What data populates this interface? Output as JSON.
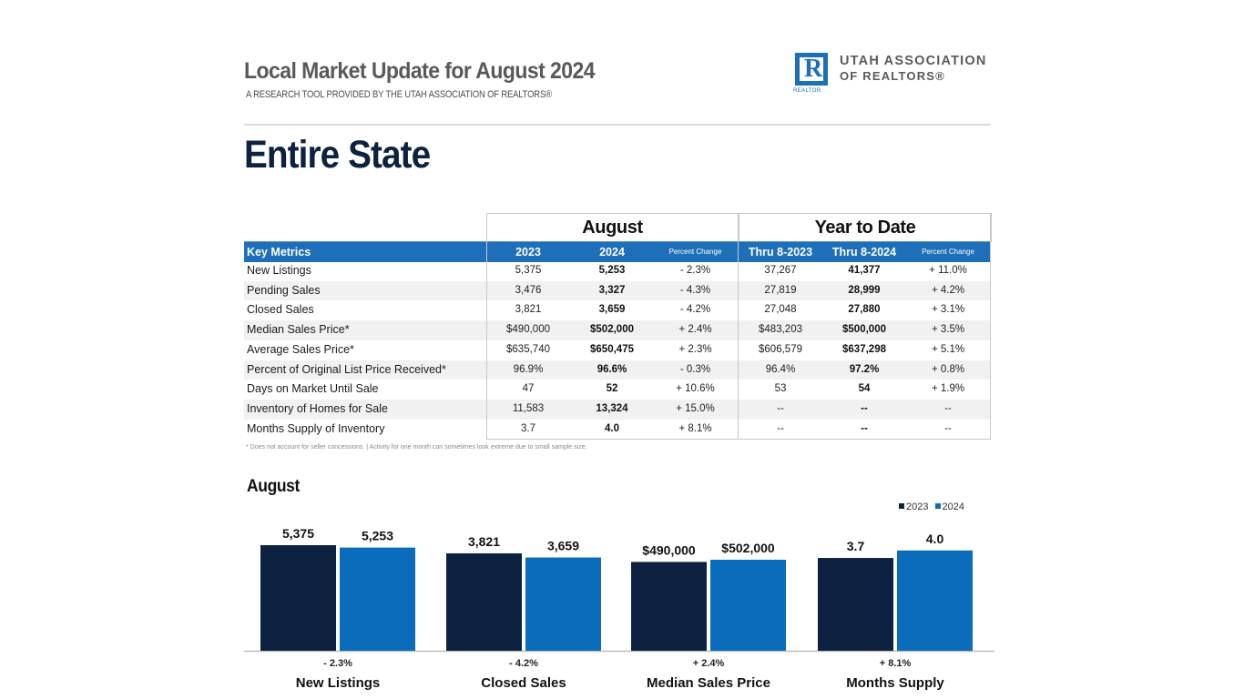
{
  "header": {
    "title": "Local Market Update for August 2024",
    "subtitle": "A RESEARCH TOOL PROVIDED BY THE UTAH ASSOCIATION OF REALTORS®",
    "logo": {
      "glyph": "R",
      "small_text": "REALTOR",
      "line1": "UTAH ASSOCIATION",
      "line2": "OF REALTORS®",
      "brand_color": "#1d6fb8"
    }
  },
  "area_title": "Entire State",
  "table": {
    "group_headers": [
      "August",
      "Year to Date"
    ],
    "columns": [
      "Key Metrics",
      "2023",
      "2024",
      "Percent Change",
      "Thru 8-2023",
      "Thru 8-2024",
      "Percent Change"
    ],
    "header_color": "#1e6fb9",
    "rows": [
      {
        "metric": "New Listings",
        "aug_2023": "5,375",
        "aug_2024": "5,253",
        "aug_change": "- 2.3%",
        "ytd_2023": "37,267",
        "ytd_2024": "41,377",
        "ytd_change": "+ 11.0%"
      },
      {
        "metric": "Pending Sales",
        "aug_2023": "3,476",
        "aug_2024": "3,327",
        "aug_change": "- 4.3%",
        "ytd_2023": "27,819",
        "ytd_2024": "28,999",
        "ytd_change": "+ 4.2%"
      },
      {
        "metric": "Closed Sales",
        "aug_2023": "3,821",
        "aug_2024": "3,659",
        "aug_change": "- 4.2%",
        "ytd_2023": "27,048",
        "ytd_2024": "27,880",
        "ytd_change": "+ 3.1%"
      },
      {
        "metric": "Median Sales Price*",
        "aug_2023": "$490,000",
        "aug_2024": "$502,000",
        "aug_change": "+ 2.4%",
        "ytd_2023": "$483,203",
        "ytd_2024": "$500,000",
        "ytd_change": "+ 3.5%"
      },
      {
        "metric": "Average Sales Price*",
        "aug_2023": "$635,740",
        "aug_2024": "$650,475",
        "aug_change": "+ 2.3%",
        "ytd_2023": "$606,579",
        "ytd_2024": "$637,298",
        "ytd_change": "+ 5.1%"
      },
      {
        "metric": "Percent of Original List Price Received*",
        "aug_2023": "96.9%",
        "aug_2024": "96.6%",
        "aug_change": "- 0.3%",
        "ytd_2023": "96.4%",
        "ytd_2024": "97.2%",
        "ytd_change": "+ 0.8%"
      },
      {
        "metric": "Days on Market Until Sale",
        "aug_2023": "47",
        "aug_2024": "52",
        "aug_change": "+ 10.6%",
        "ytd_2023": "53",
        "ytd_2024": "54",
        "ytd_change": "+ 1.9%"
      },
      {
        "metric": "Inventory of Homes for Sale",
        "aug_2023": "11,583",
        "aug_2024": "13,324",
        "aug_change": "+ 15.0%",
        "ytd_2023": "--",
        "ytd_2024": "--",
        "ytd_change": "--"
      },
      {
        "metric": "Months Supply of Inventory",
        "aug_2023": "3.7",
        "aug_2024": "4.0",
        "aug_change": "+ 8.1%",
        "ytd_2023": "--",
        "ytd_2024": "--",
        "ytd_change": "--"
      }
    ],
    "footnote": "* Does not account for seller concessions.  |  Activity for one month can sometimes look extreme due to small sample size."
  },
  "chart_data": {
    "type": "bar",
    "title": "August",
    "legend": [
      "2023",
      "2024"
    ],
    "legend_position": "top-right",
    "colors": {
      "2023": "#0d2240",
      "2024": "#0a6cba"
    },
    "categories": [
      "New Listings",
      "Closed Sales",
      "Median Sales Price",
      "Months Supply"
    ],
    "series": [
      {
        "name": "2023",
        "values": [
          5375,
          3821,
          490000,
          3.7
        ],
        "labels": [
          "5,375",
          "3,821",
          "$490,000",
          "3.7"
        ]
      },
      {
        "name": "2024",
        "values": [
          5253,
          3659,
          502000,
          4.0
        ],
        "labels": [
          "5,253",
          "3,659",
          "$502,000",
          "4.0"
        ]
      }
    ],
    "percent_change": [
      "- 2.3%",
      "- 4.2%",
      "+ 2.4%",
      "+ 8.1%"
    ],
    "per_category_ymax": [
      6255,
      4820,
      677700,
      4.9
    ],
    "xlabel": "",
    "ylabel": "",
    "grid": false
  }
}
